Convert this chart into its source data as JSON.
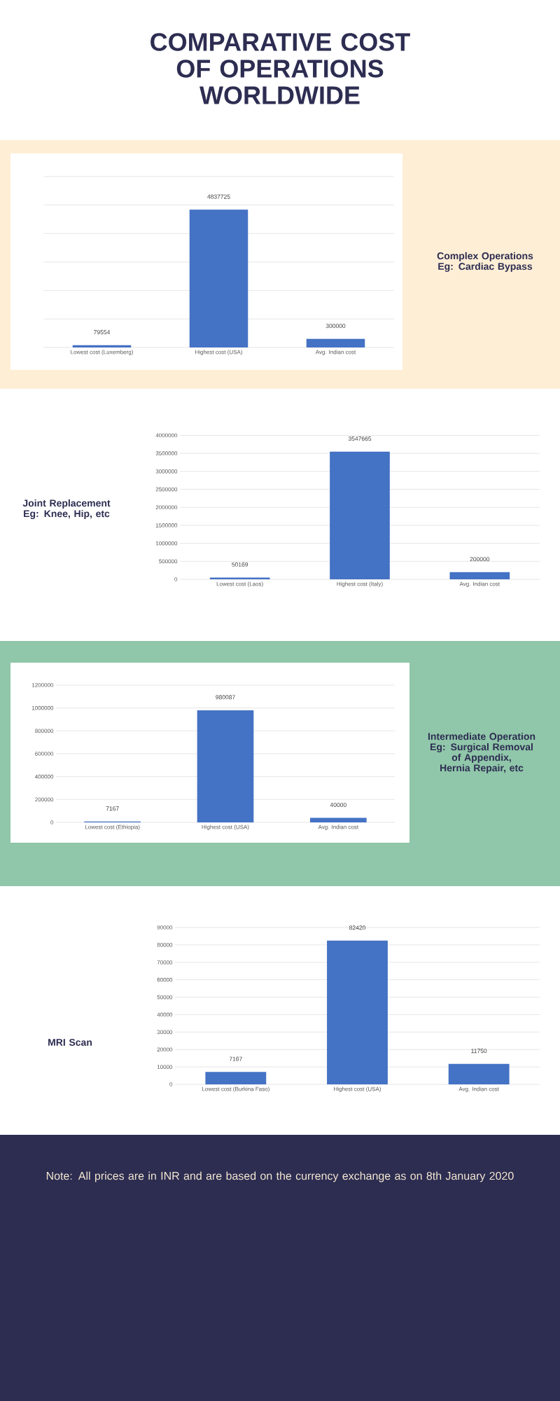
{
  "chart_data": [
    {
      "type": "bar",
      "title": "COMPARATIVE COST OF OPERATIONS WORLDWIDE",
      "annotations": [
        "Complex Operations Eg: Cardiac Bypass"
      ],
      "categories": [
        "Lowest cost (Luxemberg)",
        "Highest cost (USA)",
        "Avg. Indian cost"
      ],
      "values": [
        79554,
        4837725,
        300000
      ],
      "color": "#4472c4",
      "data_labels": true,
      "grid": "y",
      "ylim": [
        0,
        6000000
      ],
      "yticks": [
        {
          "value": 0,
          "label": null
        },
        {
          "value": 1000000,
          "label": null
        },
        {
          "value": 2000000,
          "label": null
        },
        {
          "value": 3000000,
          "label": null
        },
        {
          "value": 4000000,
          "label": null
        },
        {
          "value": 5000000,
          "label": null
        },
        {
          "value": 6000000,
          "label": null
        }
      ]
    },
    {
      "type": "bar",
      "annotations": [
        "Joint Replacement Eg: Knee, Hip, etc"
      ],
      "categories": [
        "Lowest cost (Laos)",
        "Highest cost (Italy)",
        "Avg. Indian cost"
      ],
      "values": [
        50169,
        3547665,
        200000
      ],
      "color": "#4472c4",
      "data_labels": true,
      "grid": "y",
      "ylim": [
        0,
        4000000
      ],
      "yticks": [
        0,
        500000,
        1000000,
        1500000,
        2000000,
        2500000,
        3000000,
        3500000,
        4000000
      ]
    },
    {
      "type": "bar",
      "annotations": [
        "Intermediate Operation Eg: Surgical Removal of Appendix, Hernia Repair, etc"
      ],
      "categories": [
        "Lowest cost (Ethiopia)",
        "Highest cost (USA)",
        "Avg. Indian cost"
      ],
      "values": [
        7167,
        980087,
        40000
      ],
      "color": "#4472c4",
      "data_labels": true,
      "grid": "y",
      "ylim": [
        0,
        1200000
      ],
      "yticks": [
        0,
        200000,
        400000,
        600000,
        800000,
        1000000,
        1200000
      ]
    },
    {
      "type": "bar",
      "annotations": [
        "MRI Scan",
        "Note: All prices are in INR and are based on  the currency exchange  as on 8th January 2020"
      ],
      "categories": [
        "Lowest cost (Burkina Faso)",
        "Highest cost (USA)",
        "Avg. Indian cost"
      ],
      "values": [
        7167,
        82420,
        11750
      ],
      "color": "#4472c4",
      "data_labels": true,
      "grid": "y",
      "ylim": [
        0,
        90000
      ],
      "yticks": [
        0,
        10000,
        20000,
        30000,
        40000,
        50000,
        60000,
        70000,
        80000,
        90000
      ]
    }
  ]
}
